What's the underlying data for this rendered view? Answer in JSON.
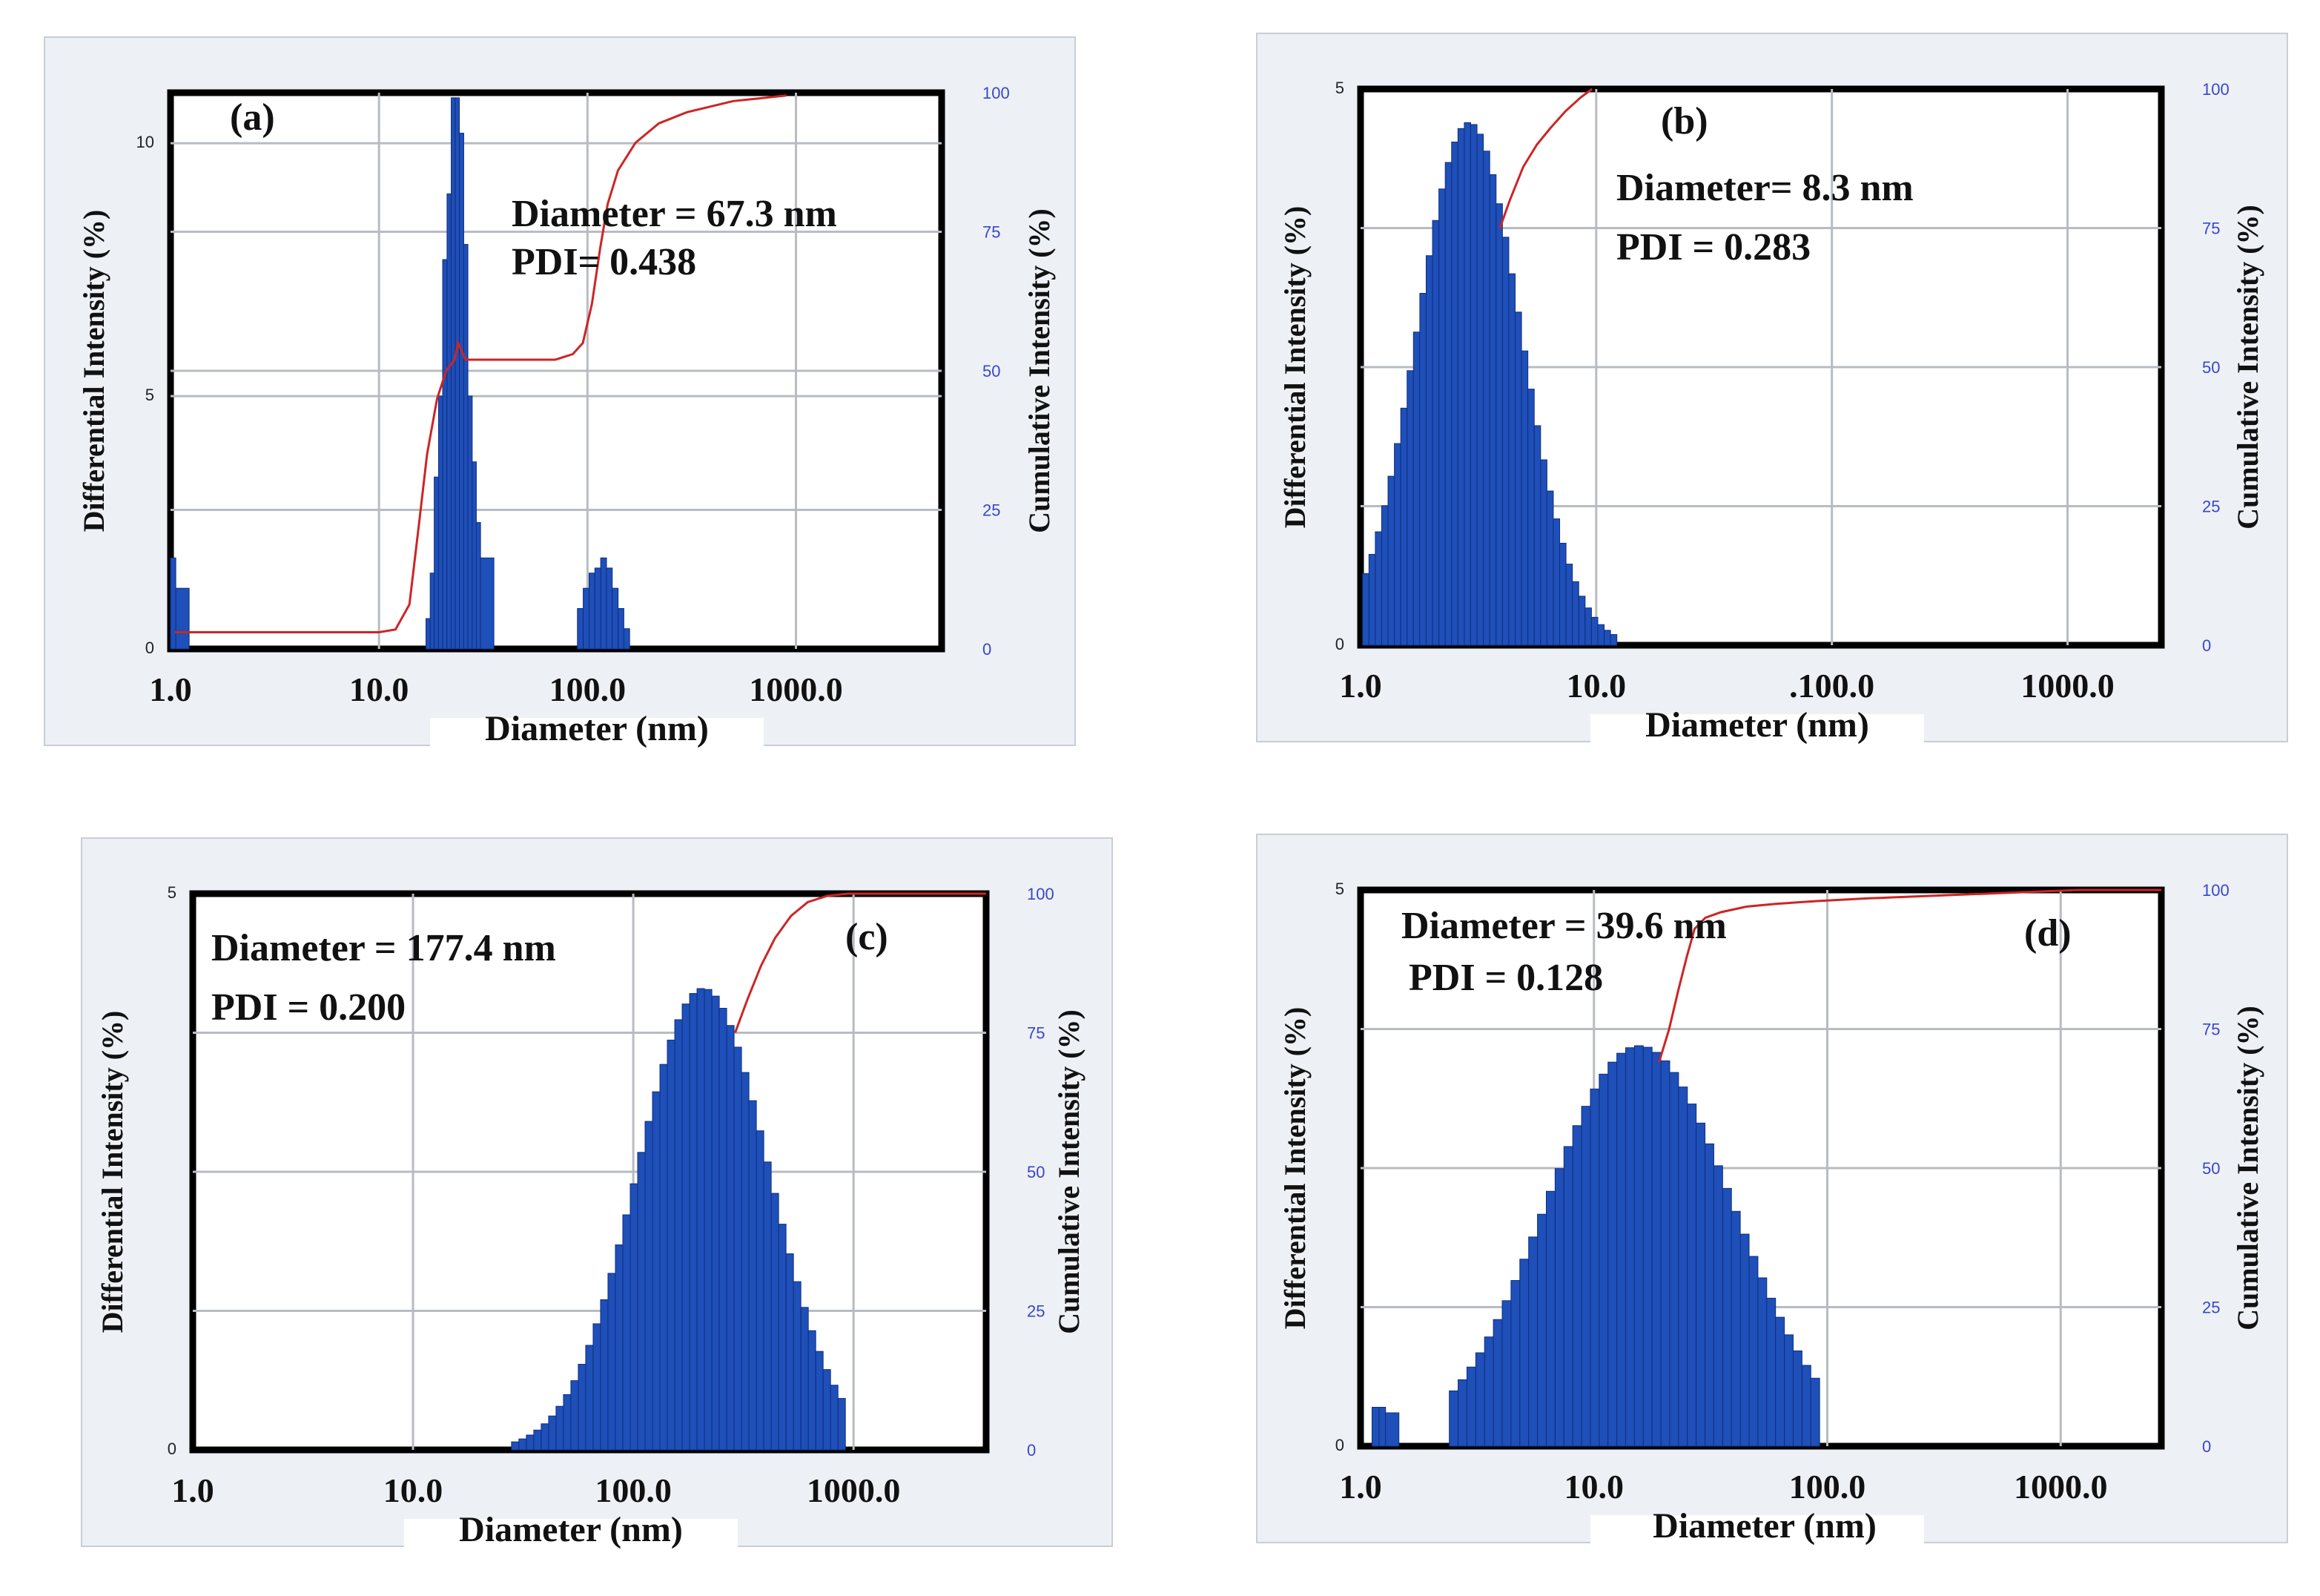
{
  "figure": "DLS particle size distribution",
  "chart_data": [
    {
      "type": "bar",
      "panel_label": "(a)",
      "xlabel": "Diameter (nm)",
      "ylabel": "Differential Intensity (%)",
      "y2label": "Cumulative Intensity (%)",
      "xscale": "log",
      "xlim": [
        1.0,
        5000
      ],
      "ylim": [
        0,
        11
      ],
      "y2lim": [
        0,
        100
      ],
      "xticks": [
        "1.0",
        "10.0",
        "100.0",
        "1000.0"
      ],
      "xtick_values": [
        1,
        10,
        100,
        1000
      ],
      "yticks": [
        0,
        5,
        10
      ],
      "y2ticks": [
        0,
        25,
        50,
        75,
        100
      ],
      "annotations": [
        "Diameter = 67.3 nm",
        "PDI= 0.438"
      ],
      "series": [
        {
          "name": "Differential Intensity",
          "kind": "bars",
          "x": [
            1.0,
            1.06,
            16.8,
            17.6,
            18.4,
            19.3,
            20.2,
            21.2,
            22.2,
            23.2,
            24.3,
            25.5,
            26.7,
            28.0,
            29.3,
            30.7,
            89.5,
            95.4,
            101.8,
            108.5,
            115.7,
            123.4,
            131.5,
            140.3,
            149.5
          ],
          "values": [
            1.8,
            1.2,
            0.6,
            1.5,
            3.4,
            5.0,
            7.7,
            9.0,
            10.9,
            10.9,
            10.2,
            8.0,
            5.0,
            3.7,
            2.5,
            1.8,
            0.8,
            1.2,
            1.5,
            1.6,
            1.8,
            1.6,
            1.2,
            0.8,
            0.4
          ]
        },
        {
          "name": "Cumulative Intensity",
          "kind": "line",
          "x": [
            1.05,
            5,
            10,
            12,
            14,
            15.5,
            17,
            19,
            21,
            23,
            24,
            26,
            30,
            50,
            70,
            85,
            95,
            105,
            115,
            125,
            140,
            170,
            220,
            300,
            500,
            900
          ],
          "values": [
            3,
            3,
            3,
            3.5,
            8,
            22,
            35,
            45,
            50,
            52,
            55,
            52,
            52,
            52,
            52,
            53,
            55,
            62,
            72,
            80,
            86,
            91,
            94.5,
            96.5,
            98.5,
            99.5
          ]
        }
      ]
    },
    {
      "type": "bar",
      "panel_label": "(b)",
      "xlabel": "Diameter (nm)",
      "ylabel": "Differential Intensity (%)",
      "y2label": "Cumulative Intensity (%)",
      "xscale": "log",
      "xlim": [
        1.0,
        2500
      ],
      "ylim": [
        0,
        5
      ],
      "y2lim": [
        0,
        100
      ],
      "xticks": [
        "1.0",
        "10.0",
        ".100.0",
        "1000.0"
      ],
      "xtick_values": [
        1,
        10,
        100,
        1000
      ],
      "yticks": [
        0,
        5
      ],
      "y2ticks": [
        0,
        25,
        50,
        75,
        100
      ],
      "annotations": [
        "Diameter= 8.3 nm",
        "PDI = 0.283"
      ],
      "series": [
        {
          "name": "Differential Intensity",
          "kind": "bars",
          "gauss": {
            "mu": 2.8,
            "sigma_log10": 0.22,
            "peak": 4.7,
            "xmin": 1.02,
            "xmax": 11.5,
            "nbars": 40
          }
        },
        {
          "name": "Cumulative Intensity",
          "kind": "line",
          "x": [
            3.9,
            4.3,
            4.9,
            5.6,
            6.4,
            7.4,
            8.6,
            9.6
          ],
          "values": [
            75,
            80,
            86,
            90,
            93,
            96,
            98.5,
            100
          ]
        }
      ]
    },
    {
      "type": "bar",
      "panel_label": "(c)",
      "xlabel": "Diameter (nm)",
      "ylabel": "Differential Intensity (%)",
      "y2label": "Cumulative Intensity (%)",
      "xscale": "log",
      "xlim": [
        1.0,
        4000
      ],
      "ylim": [
        0,
        5
      ],
      "y2lim": [
        0,
        100
      ],
      "xticks": [
        "1.0",
        "10.0",
        "100.0",
        "1000.0"
      ],
      "xtick_values": [
        1,
        10,
        100,
        1000
      ],
      "yticks": [
        0,
        5
      ],
      "y2ticks": [
        0,
        25,
        50,
        75,
        100
      ],
      "annotations": [
        "Diameter = 177.4  nm",
        "PDI = 0.200"
      ],
      "series": [
        {
          "name": "Differential Intensity",
          "kind": "bars",
          "gauss": {
            "mu": 200,
            "sigma_log10": 0.3,
            "peak": 4.15,
            "xmin": 28,
            "xmax": 850,
            "nbars": 45
          }
        },
        {
          "name": "Cumulative Intensity",
          "kind": "line",
          "x": [
            290,
            330,
            380,
            440,
            520,
            620,
            760,
            950,
            1300,
            2000,
            4000
          ],
          "values": [
            75,
            81,
            87,
            92,
            96,
            98.5,
            99.6,
            100,
            100,
            100,
            100
          ]
        }
      ]
    },
    {
      "type": "bar",
      "panel_label": "(d)",
      "xlabel": "Diameter (nm)",
      "ylabel": "Differential Intensity (%)",
      "y2label": "Cumulative Intensity (%)",
      "xscale": "log",
      "xlim": [
        1.0,
        2700
      ],
      "ylim": [
        0,
        5
      ],
      "y2lim": [
        0,
        100
      ],
      "xticks": [
        "1.0",
        "10.0",
        "100.0",
        "1000.0"
      ],
      "xtick_values": [
        1,
        10,
        100,
        1000
      ],
      "yticks": [
        0,
        5
      ],
      "y2ticks": [
        0,
        25,
        50,
        75,
        100
      ],
      "annotations": [
        "Diameter = 39.6 nm",
        "PDI = 0.128"
      ],
      "series": [
        {
          "name": "Differential Intensity",
          "kind": "bars",
          "extra_bars": {
            "x": [
              1.12,
              1.2,
              1.28
            ],
            "values": [
              0.35,
              0.35,
              0.3
            ]
          },
          "gauss": {
            "mu": 15,
            "sigma_log10": 0.4,
            "peak": 3.6,
            "xmin": 2.4,
            "xmax": 85,
            "nbars": 42
          }
        },
        {
          "name": "Cumulative Intensity",
          "kind": "line",
          "x": [
            19,
            21,
            23,
            25,
            27,
            30,
            35,
            45,
            60,
            90,
            150,
            300,
            600,
            1200,
            2700
          ],
          "values": [
            69,
            75,
            82,
            88,
            93,
            95,
            96,
            97,
            97.5,
            98,
            98.5,
            99,
            99.5,
            100,
            100
          ]
        }
      ]
    }
  ]
}
